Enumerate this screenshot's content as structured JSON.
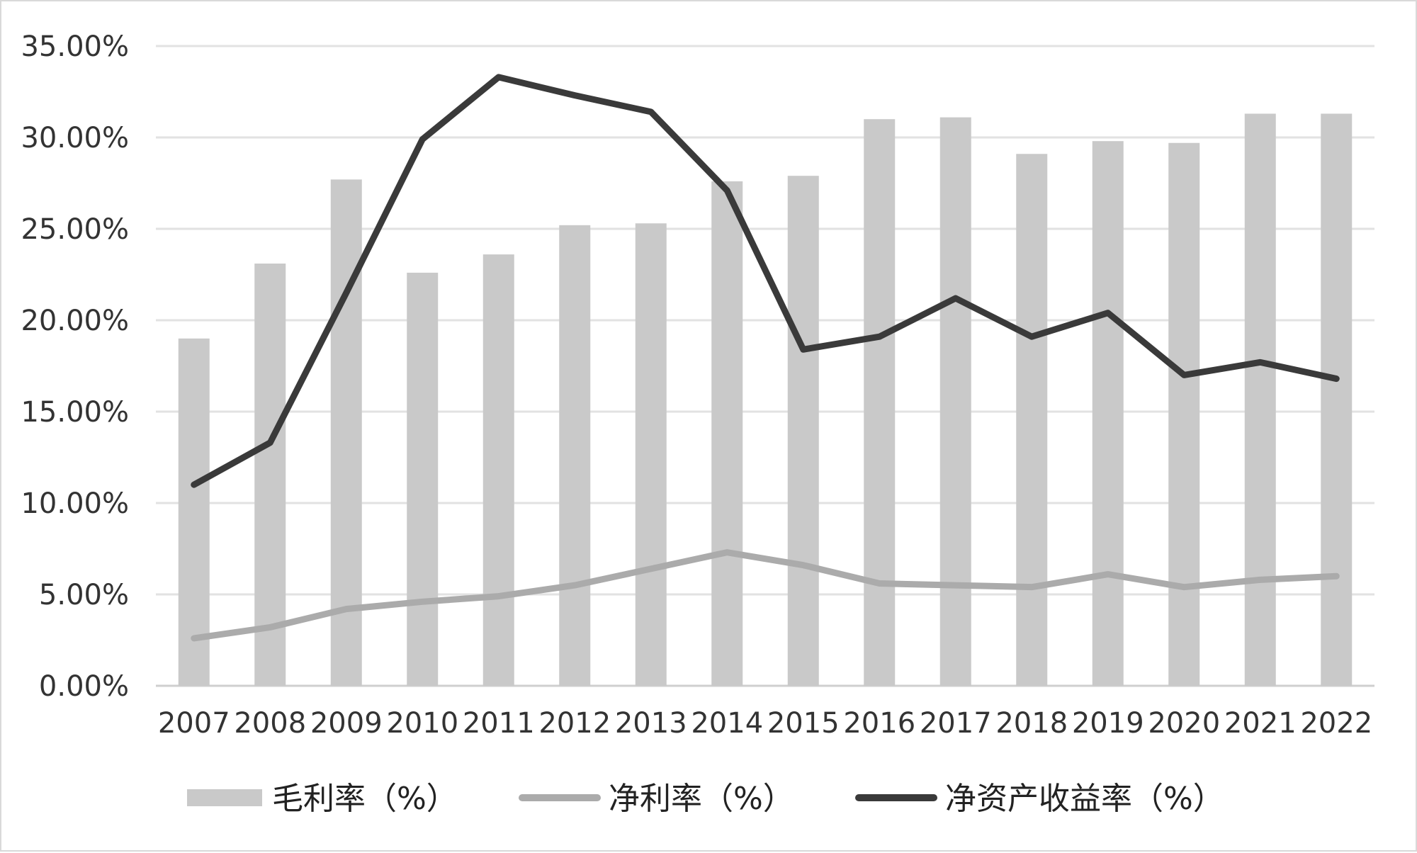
{
  "chart_data": {
    "type": "bar",
    "categories": [
      "2007",
      "2008",
      "2009",
      "2010",
      "2011",
      "2012",
      "2013",
      "2014",
      "2015",
      "2016",
      "2017",
      "2018",
      "2019",
      "2020",
      "2021",
      "2022"
    ],
    "ylim": [
      0,
      35
    ],
    "yticks": [
      "0.00%",
      "5.00%",
      "10.00%",
      "15.00%",
      "20.00%",
      "25.00%",
      "30.00%",
      "35.00%"
    ],
    "grid": true,
    "legend_position": "bottom",
    "series": [
      {
        "name": "毛利率（%）",
        "type": "bar",
        "color": "#c9c9c9",
        "values": [
          19.0,
          23.1,
          27.7,
          22.6,
          23.6,
          25.2,
          25.3,
          27.6,
          27.9,
          31.0,
          31.1,
          29.1,
          29.8,
          29.7,
          31.3,
          31.3
        ]
      },
      {
        "name": "净利率（%）",
        "type": "line",
        "color": "#ababab",
        "values": [
          2.6,
          3.2,
          4.2,
          4.6,
          4.9,
          5.5,
          6.4,
          7.3,
          6.6,
          5.6,
          5.5,
          5.4,
          6.1,
          5.4,
          5.8,
          6.0
        ]
      },
      {
        "name": "净资产收益率（%）",
        "type": "line",
        "color": "#3a3a3a",
        "values": [
          11.0,
          13.3,
          21.5,
          29.9,
          33.3,
          32.3,
          31.4,
          27.1,
          18.4,
          19.1,
          21.2,
          19.1,
          20.4,
          17.0,
          17.7,
          16.8
        ]
      }
    ]
  }
}
